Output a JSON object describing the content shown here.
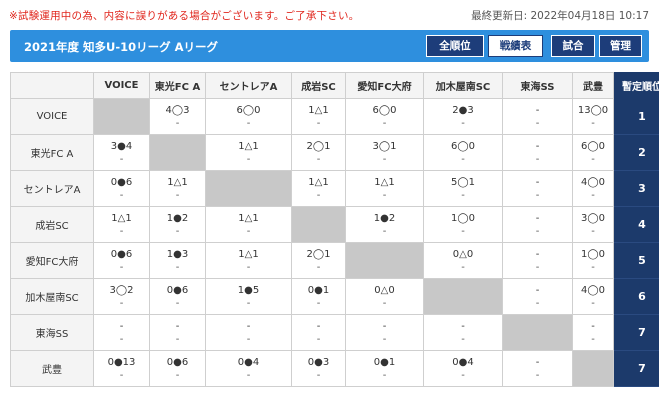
{
  "notice": "※試験運用中の為、内容に誤りがある場合がございます。ご了承下さい。",
  "updated": "最終更新日: 2022年04月18日 10:17",
  "header": {
    "title": "2021年度 知多U-10リーグ Aリーグ",
    "buttons": [
      "全順位",
      "戦績表",
      "試合",
      "管理"
    ],
    "active_button": "戦績表"
  },
  "colors": {
    "header": "#2e8fde",
    "rank": "#1c3a6b",
    "self_cell": "#c8c8c8",
    "notice": "#e0261d"
  },
  "table": {
    "corner": "",
    "rank_header": "暫定順位",
    "teams": [
      "VOICE",
      "東光FC A",
      "セントレアA",
      "成岩SC",
      "愛知FC大府",
      "加木屋南SC",
      "東海SS",
      "武豊"
    ],
    "row_labels": [
      "VOICE",
      "東光FC A",
      "セントレアA",
      "成岩SC",
      "愛知FC大府",
      "加木屋南SC",
      "東海SS",
      "武豊"
    ],
    "ranks": [
      "1",
      "2",
      "3",
      "4",
      "5",
      "6",
      "7",
      "7"
    ],
    "cells": [
      [
        null,
        [
          "4◯3",
          "-"
        ],
        [
          "6◯0",
          "-"
        ],
        [
          "1△1",
          "-"
        ],
        [
          "6◯0",
          "-"
        ],
        [
          "2●3",
          "-"
        ],
        [
          "-",
          "-"
        ],
        [
          "13◯0",
          "-"
        ]
      ],
      [
        [
          "3●4",
          "-"
        ],
        null,
        [
          "1△1",
          "-"
        ],
        [
          "2◯1",
          "-"
        ],
        [
          "3◯1",
          "-"
        ],
        [
          "6◯0",
          "-"
        ],
        [
          "-",
          "-"
        ],
        [
          "6◯0",
          "-"
        ]
      ],
      [
        [
          "0●6",
          "-"
        ],
        [
          "1△1",
          "-"
        ],
        null,
        [
          "1△1",
          "-"
        ],
        [
          "1△1",
          "-"
        ],
        [
          "5◯1",
          "-"
        ],
        [
          "-",
          "-"
        ],
        [
          "4◯0",
          "-"
        ]
      ],
      [
        [
          "1△1",
          "-"
        ],
        [
          "1●2",
          "-"
        ],
        [
          "1△1",
          "-"
        ],
        null,
        [
          "1●2",
          "-"
        ],
        [
          "1◯0",
          "-"
        ],
        [
          "-",
          "-"
        ],
        [
          "3◯0",
          "-"
        ]
      ],
      [
        [
          "0●6",
          "-"
        ],
        [
          "1●3",
          "-"
        ],
        [
          "1△1",
          "-"
        ],
        [
          "2◯1",
          "-"
        ],
        null,
        [
          "0△0",
          "-"
        ],
        [
          "-",
          "-"
        ],
        [
          "1◯0",
          "-"
        ]
      ],
      [
        [
          "3◯2",
          "-"
        ],
        [
          "0●6",
          "-"
        ],
        [
          "1●5",
          "-"
        ],
        [
          "0●1",
          "-"
        ],
        [
          "0△0",
          "-"
        ],
        null,
        [
          "-",
          "-"
        ],
        [
          "4◯0",
          "-"
        ]
      ],
      [
        [
          "-",
          "-"
        ],
        [
          "-",
          "-"
        ],
        [
          "-",
          "-"
        ],
        [
          "-",
          "-"
        ],
        [
          "-",
          "-"
        ],
        [
          "-",
          "-"
        ],
        null,
        [
          "-",
          "-"
        ]
      ],
      [
        [
          "0●13",
          "-"
        ],
        [
          "0●6",
          "-"
        ],
        [
          "0●4",
          "-"
        ],
        [
          "0●3",
          "-"
        ],
        [
          "0●1",
          "-"
        ],
        [
          "0●4",
          "-"
        ],
        [
          "-",
          "-"
        ],
        null
      ]
    ]
  }
}
